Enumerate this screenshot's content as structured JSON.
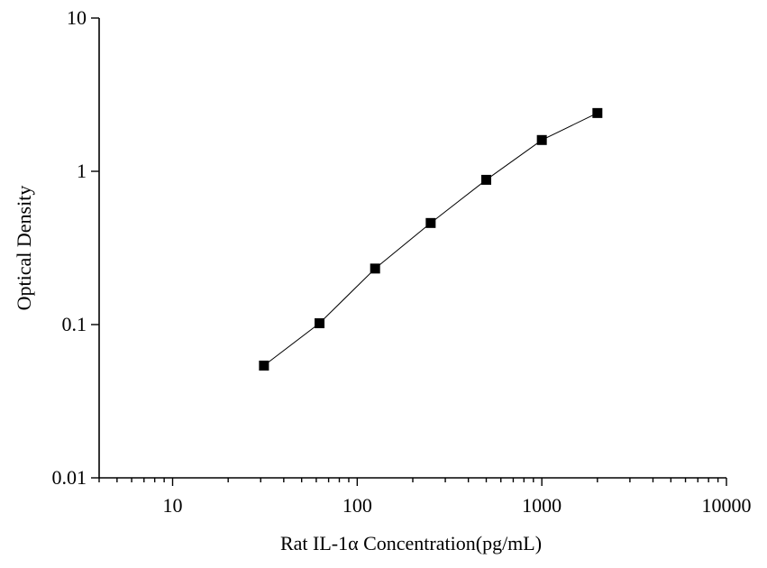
{
  "chart_data": {
    "type": "scatter",
    "xlabel": "Rat IL-1α Concentration(pg/mL)",
    "ylabel": "Optical Density",
    "x_scale": "log",
    "y_scale": "log",
    "xlim": [
      4,
      10000
    ],
    "ylim": [
      0.01,
      10
    ],
    "x_ticks": [
      {
        "value": 10,
        "label": "10"
      },
      {
        "value": 100,
        "label": "100"
      },
      {
        "value": 1000,
        "label": "1000"
      },
      {
        "value": 10000,
        "label": "10000"
      }
    ],
    "y_ticks": [
      {
        "value": 0.01,
        "label": "0.01"
      },
      {
        "value": 0.1,
        "label": "0.1"
      },
      {
        "value": 1,
        "label": "1"
      },
      {
        "value": 10,
        "label": "10"
      }
    ],
    "grid": false,
    "series": [
      {
        "marker": "square",
        "connected": true,
        "color": "#000000",
        "x": [
          31.25,
          62.5,
          125,
          250,
          500,
          1000,
          2000
        ],
        "y": [
          0.054,
          0.102,
          0.232,
          0.46,
          0.88,
          1.6,
          2.4
        ]
      }
    ]
  }
}
